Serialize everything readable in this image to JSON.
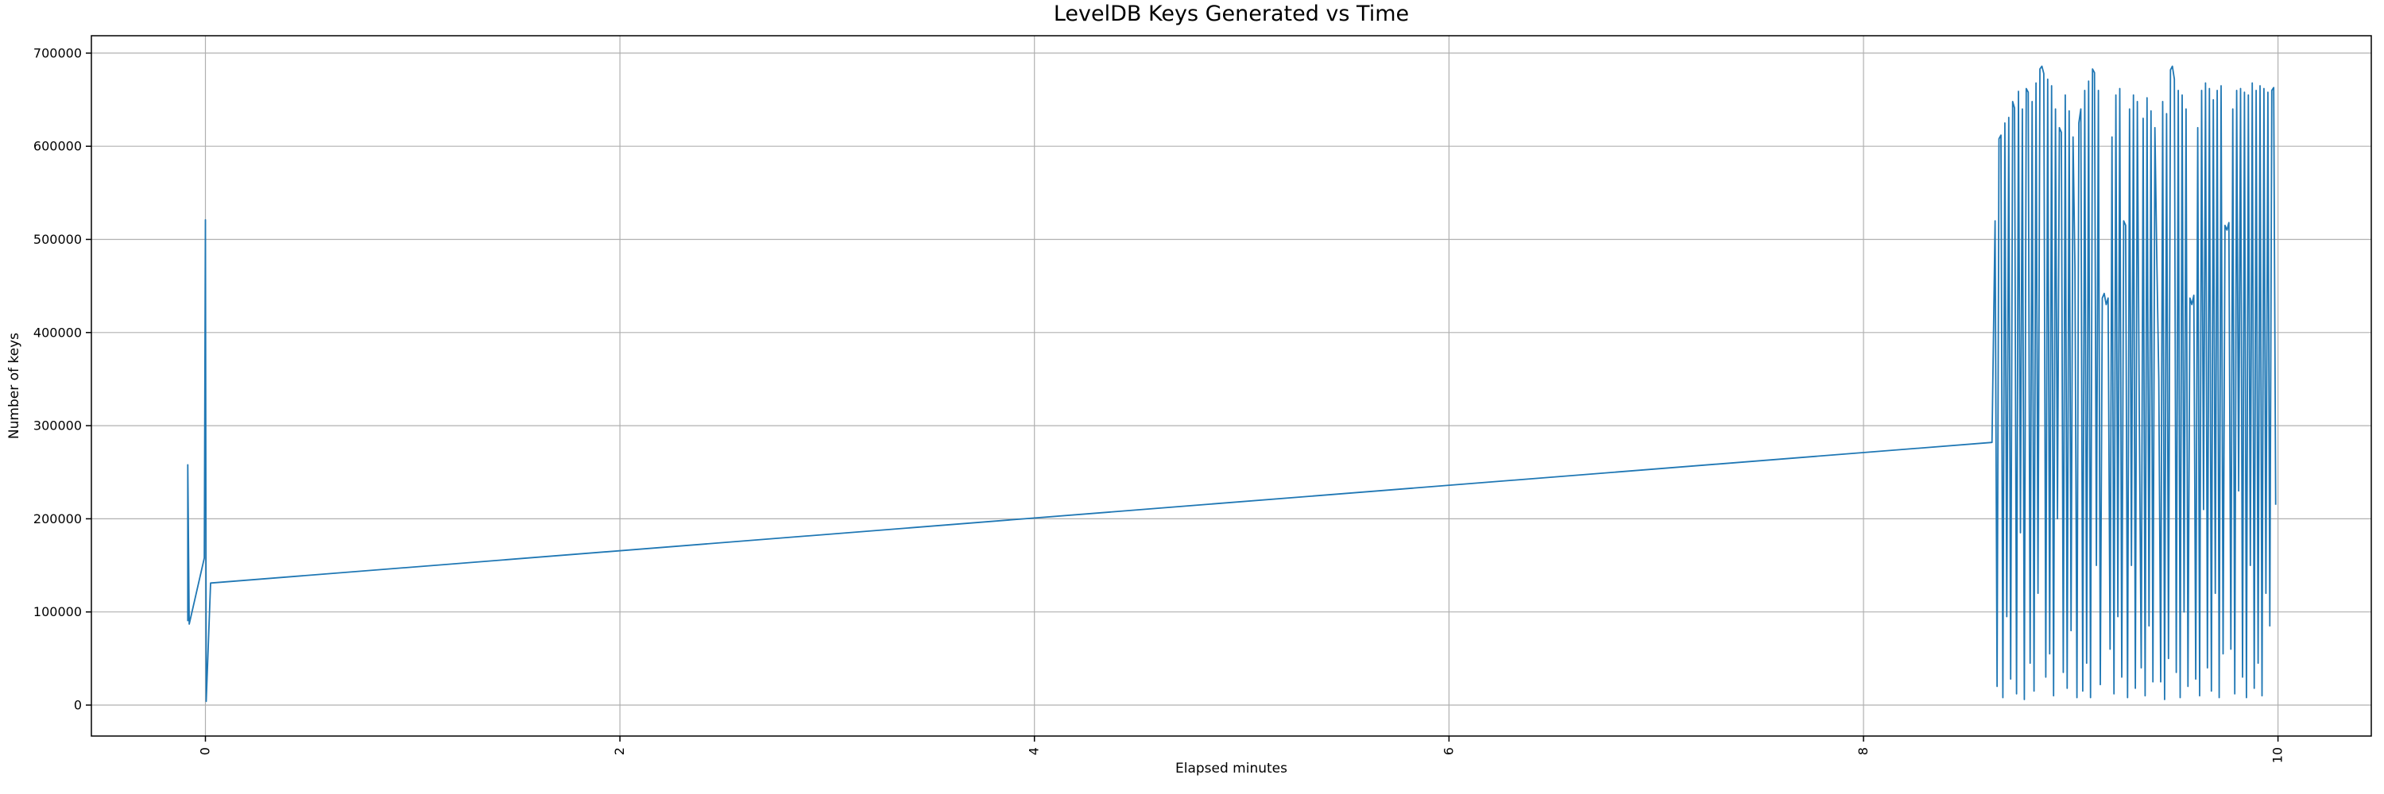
{
  "chart_data": {
    "type": "line",
    "title": "LevelDB Keys Generated vs Time",
    "xlabel": "Elapsed minutes",
    "ylabel": "Number of keys",
    "legend": "none",
    "grid": true,
    "grid_color": "#b0b0b0",
    "background_color": "#ffffff",
    "series_color": "#1f77b4",
    "line_width": 1.8,
    "xlim": [
      -0.55,
      10.45
    ],
    "ylim": [
      -33250,
      718700
    ],
    "xticks": [
      0,
      2,
      4,
      6,
      8,
      10
    ],
    "yticks": [
      0,
      100000,
      200000,
      300000,
      400000,
      500000,
      600000,
      700000
    ],
    "xtick_rotation_deg": 90,
    "series": [
      {
        "name": "keys",
        "head_points": [
          [
            -0.085,
            90000
          ],
          [
            -0.085,
            258000
          ],
          [
            -0.078,
            87000
          ],
          [
            -0.005,
            158000
          ],
          [
            0.0,
            521000
          ],
          [
            0.004,
            4000
          ],
          [
            0.025,
            131000
          ]
        ],
        "trend": {
          "from": [
            0.025,
            131000
          ],
          "to": [
            8.62,
            282000
          ]
        },
        "noise": {
          "x_start": 8.635,
          "x_step": 0.0094,
          "y": [
            520000,
            20000,
            608000,
            612000,
            8000,
            625000,
            95000,
            631000,
            28000,
            648000,
            641000,
            12000,
            659000,
            185000,
            640000,
            6000,
            662000,
            658000,
            45000,
            648000,
            15000,
            668000,
            120000,
            683000,
            686000,
            678000,
            30000,
            672000,
            55000,
            665000,
            10000,
            640000,
            200000,
            620000,
            615000,
            35000,
            655000,
            18000,
            638000,
            80000,
            610000,
            470000,
            8000,
            625000,
            640000,
            15000,
            660000,
            45000,
            670000,
            8000,
            683000,
            679000,
            150000,
            660000,
            22000,
            437000,
            442000,
            430000,
            437000,
            60000,
            610000,
            12000,
            655000,
            95000,
            662000,
            30000,
            520000,
            515000,
            8000,
            640000,
            150000,
            655000,
            18000,
            648000,
            320000,
            40000,
            630000,
            10000,
            652000,
            85000,
            638000,
            25000,
            620000,
            480000,
            350000,
            25000,
            648000,
            6000,
            635000,
            50000,
            682000,
            686000,
            672000,
            35000,
            660000,
            8000,
            655000,
            100000,
            640000,
            20000,
            437000,
            430000,
            440000,
            28000,
            620000,
            10000,
            660000,
            210000,
            668000,
            40000,
            662000,
            15000,
            650000,
            120000,
            660000,
            8000,
            665000,
            55000,
            515000,
            510000,
            518000,
            60000,
            640000,
            12000,
            660000,
            230000,
            662000,
            30000,
            658000,
            8000,
            655000,
            150000,
            668000,
            18000,
            660000,
            45000,
            665000,
            10000,
            662000,
            120000,
            658000,
            85000,
            660000,
            663000,
            215000
          ]
        }
      }
    ]
  }
}
